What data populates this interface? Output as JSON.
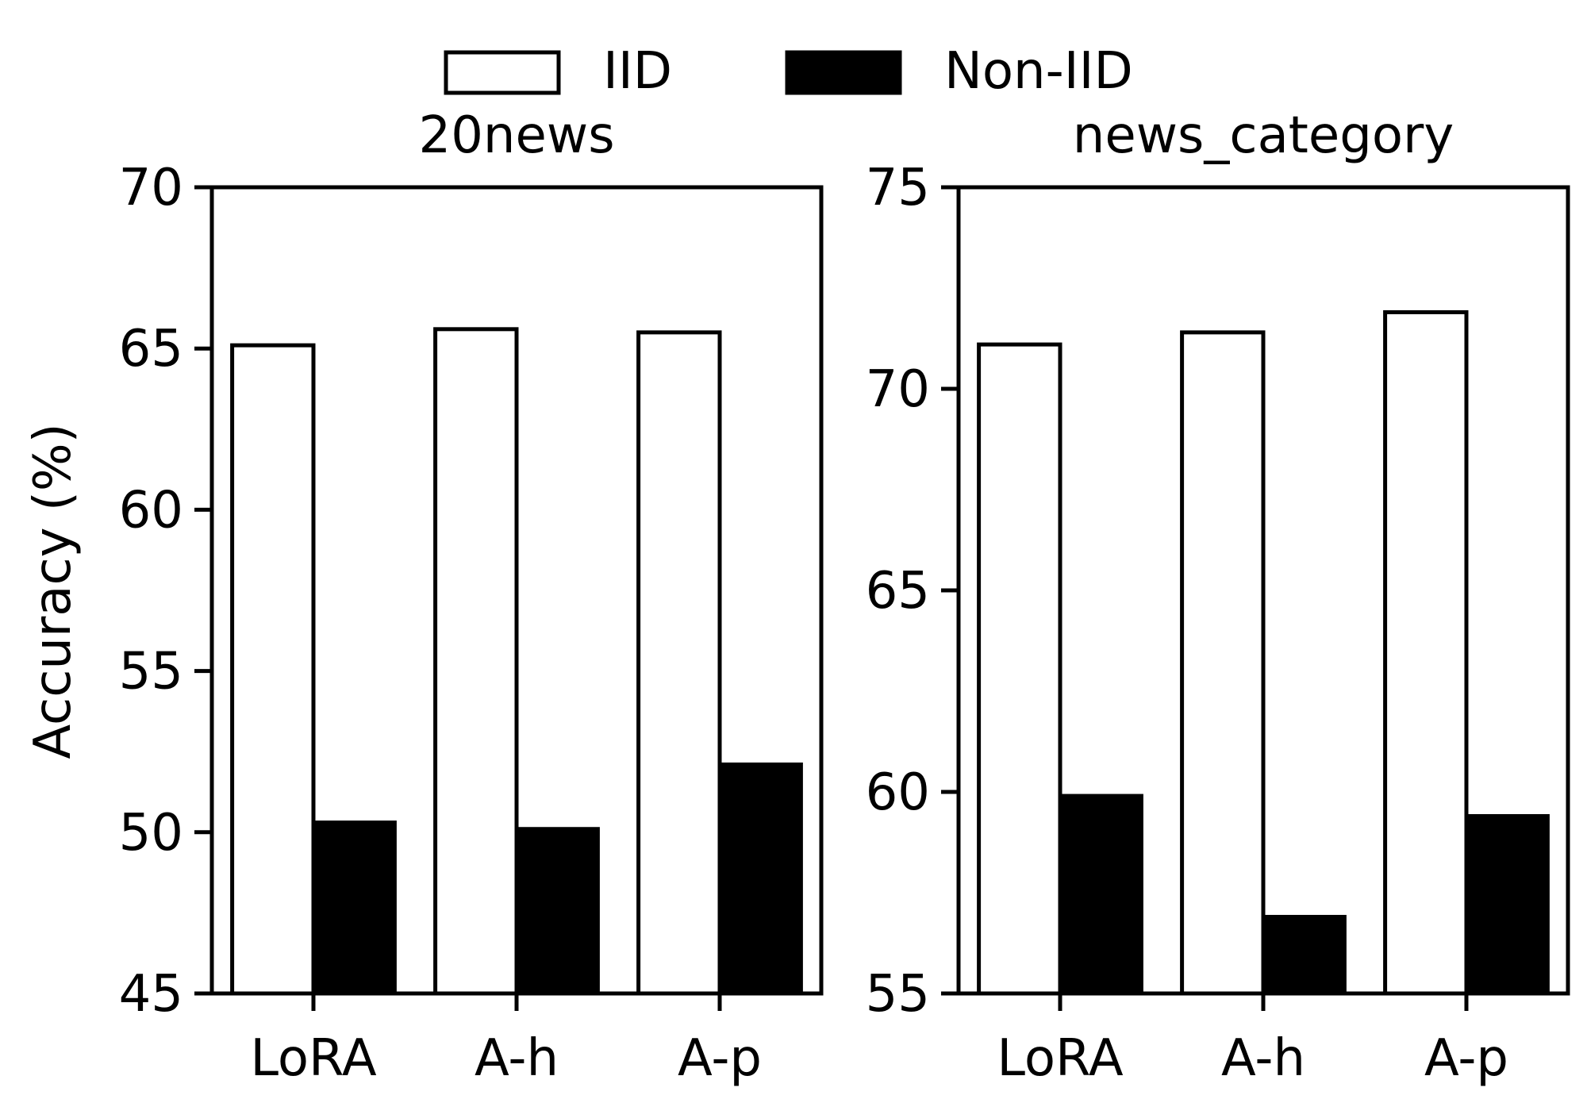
{
  "legend": {
    "placement": "top-center",
    "items": [
      {
        "label": "IID",
        "fill": "#ffffff"
      },
      {
        "label": "Non-IID",
        "fill": "#000000"
      }
    ]
  },
  "chart_data": [
    {
      "type": "bar",
      "title": "20news",
      "xlabel": "",
      "ylabel": "Accuracy (%)",
      "categories": [
        "LoRA",
        "A-h",
        "A-p"
      ],
      "ylim": [
        45,
        70
      ],
      "yticks": [
        45,
        50,
        55,
        60,
        65,
        70
      ],
      "grid": false,
      "series": [
        {
          "name": "IID",
          "values": [
            65.1,
            65.6,
            65.5
          ],
          "fill": "#ffffff",
          "stroke": "#000000"
        },
        {
          "name": "Non-IID",
          "values": [
            50.3,
            50.1,
            52.1
          ],
          "fill": "#000000",
          "stroke": "#000000"
        }
      ]
    },
    {
      "type": "bar",
      "title": "news_category",
      "xlabel": "",
      "ylabel": "",
      "categories": [
        "LoRA",
        "A-h",
        "A-p"
      ],
      "ylim": [
        55,
        75
      ],
      "yticks": [
        55,
        60,
        65,
        70,
        75
      ],
      "grid": false,
      "series": [
        {
          "name": "IID",
          "values": [
            71.1,
            71.4,
            71.9
          ],
          "fill": "#ffffff",
          "stroke": "#000000"
        },
        {
          "name": "Non-IID",
          "values": [
            59.9,
            56.9,
            59.4
          ],
          "fill": "#000000",
          "stroke": "#000000"
        }
      ]
    }
  ]
}
